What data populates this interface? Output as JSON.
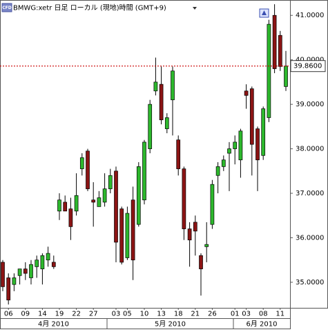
{
  "header": {
    "logo": "CFD"
  },
  "chart_data": {
    "type": "candlestick",
    "title": "BMWG:xetr 日足 ローカル (現地)時間 (GMT+9)",
    "categories": [
      null,
      "06",
      null,
      null,
      "09",
      null,
      null,
      "14",
      null,
      null,
      "19",
      null,
      null,
      "22",
      null,
      null,
      "27",
      null,
      null,
      null,
      "03",
      null,
      "05",
      null,
      null,
      "10",
      null,
      null,
      "13",
      null,
      null,
      "18",
      null,
      null,
      "21",
      null,
      null,
      "26",
      null,
      null,
      null,
      "01",
      null,
      "03",
      null,
      null,
      "08",
      null,
      null,
      "11",
      null
    ],
    "open": [
      35.45,
      35.1,
      34.95,
      35.15,
      35.3,
      35.1,
      35.35,
      35.3,
      35.5,
      35.45,
      36.6,
      36.8,
      36.65,
      36.6,
      37.55,
      37.95,
      36.85,
      36.7,
      36.8,
      37.1,
      37.5,
      36.65,
      35.55,
      36.85,
      36.3,
      36.85,
      38.0,
      39.3,
      39.45,
      38.45,
      39.1,
      38.2,
      37.55,
      36.2,
      36.35,
      35.6,
      35.8,
      36.3,
      37.4,
      37.6,
      37.9,
      38.0,
      37.75,
      39.3,
      39.35,
      38.45,
      37.85,
      38.7,
      41.0,
      40.55,
      39.4
    ],
    "high": [
      35.5,
      35.2,
      35.2,
      35.3,
      35.45,
      35.5,
      35.6,
      35.65,
      35.8,
      35.6,
      37.0,
      36.95,
      36.9,
      37.45,
      37.9,
      38.0,
      37.25,
      37.05,
      37.45,
      37.55,
      37.6,
      36.7,
      36.7,
      37.15,
      37.7,
      38.2,
      39.1,
      40.05,
      39.85,
      38.8,
      39.85,
      38.3,
      37.6,
      36.35,
      36.5,
      35.65,
      36.35,
      37.3,
      37.7,
      37.85,
      38.15,
      38.3,
      38.45,
      39.45,
      39.4,
      38.5,
      38.95,
      40.9,
      41.25,
      40.65,
      40.2
    ],
    "low": [
      34.8,
      34.5,
      34.8,
      34.95,
      35.05,
      34.95,
      35.1,
      34.95,
      35.35,
      35.3,
      36.4,
      36.6,
      35.95,
      36.5,
      37.4,
      37.05,
      36.25,
      36.7,
      36.7,
      37.0,
      35.45,
      35.4,
      35.5,
      35.05,
      36.25,
      36.75,
      37.9,
      39.2,
      38.55,
      38.35,
      38.3,
      37.4,
      35.95,
      35.35,
      35.6,
      34.7,
      35.45,
      36.2,
      37.0,
      37.5,
      37.05,
      37.65,
      37.35,
      38.9,
      37.4,
      37.05,
      37.75,
      38.6,
      39.7,
      39.75,
      39.3
    ],
    "close": [
      34.9,
      34.6,
      35.1,
      35.3,
      35.2,
      35.4,
      35.5,
      35.6,
      35.65,
      35.35,
      36.85,
      36.6,
      36.25,
      36.95,
      37.8,
      37.1,
      36.8,
      36.9,
      37.1,
      37.4,
      35.9,
      35.45,
      36.55,
      35.5,
      37.6,
      38.15,
      39.0,
      39.5,
      38.65,
      38.7,
      39.75,
      37.55,
      36.2,
      35.95,
      36.15,
      35.3,
      35.85,
      37.2,
      37.6,
      37.75,
      38.0,
      38.15,
      38.4,
      39.2,
      38.1,
      37.75,
      38.9,
      40.8,
      39.8,
      39.85,
      39.86
    ],
    "up_color": "#2db82d",
    "down_color": "#8b1414",
    "ylim": [
      34.425,
      41.345
    ],
    "yticks": [
      {
        "value": 35,
        "label": "35.0000"
      },
      {
        "value": 36,
        "label": "36.0000"
      },
      {
        "value": 37,
        "label": "37.0000"
      },
      {
        "value": 38,
        "label": "38.0000"
      },
      {
        "value": 39,
        "label": "39.0000"
      },
      {
        "value": 40,
        "label": "40.0000"
      },
      {
        "value": 41,
        "label": "41.0000"
      }
    ],
    "periods": [
      "4月 2010",
      "5月 2010",
      "6月 2010"
    ],
    "last_price": 39.86,
    "last_price_label": "39.8600",
    "last_price_color": "#cc0000"
  }
}
